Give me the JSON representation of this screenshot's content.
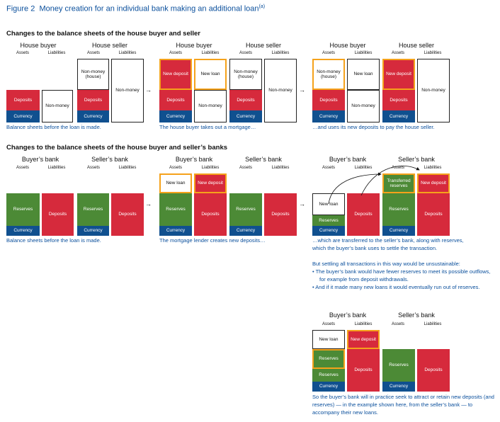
{
  "figure": {
    "number": "Figure 2",
    "title": "Money creation for an individual bank making an additional loan",
    "footnote_mark": "(a)"
  },
  "section1": {
    "heading": "Changes to the balance sheets of the house buyer and seller",
    "captions": [
      "Balance sheets before the loan is made.",
      "The house buyer takes out a mortgage…",
      "…and uses its new deposits to pay the house seller."
    ]
  },
  "section2": {
    "heading": "Changes to the balance sheets of the house buyer and seller’s banks",
    "captions": [
      "Balance sheets before the loan is made.",
      "The mortgage lender creates new deposits…",
      "…which are transferred to the seller’s bank, along with reserves,",
      "which the buyer’s bank uses to settle the transaction."
    ]
  },
  "owners": {
    "house_buyer": "House buyer",
    "house_seller": "House seller",
    "buyers_bank": "Buyer’s bank",
    "sellers_bank": "Seller’s bank"
  },
  "columns": {
    "assets": "Assets",
    "liabilities": "Liabilities"
  },
  "items": {
    "deposits": "Deposits",
    "currency": "Currency",
    "non_money": "Non-money",
    "non_money_house": "Non-money (house)",
    "new_deposit": "New deposit",
    "new_loan": "New loan",
    "reserves": "Reserves",
    "transferred_reserves": "Transferred reserves"
  },
  "notes": {
    "intro": "But settling all transactions in this way would be unsustainable:",
    "bullet1": "•  The buyer’s bank would have fewer reserves to meet its possible outflows, for example from deposit withdrawals.",
    "bullet2": "•  And if it made many new loans it would eventually run out of reserves.",
    "final": "So the buyer’s bank will in practice seek to attract or retain new deposits (and reserves) — in the example shown here, from the seller’s bank — to accompany their new loans."
  },
  "colors": {
    "deposit_red": "#d62a3c",
    "reserves_green": "#4c8a36",
    "currency_navy": "#10508f",
    "highlight_orange": "#f5a21b",
    "caption_blue": "#0a4f9c"
  }
}
